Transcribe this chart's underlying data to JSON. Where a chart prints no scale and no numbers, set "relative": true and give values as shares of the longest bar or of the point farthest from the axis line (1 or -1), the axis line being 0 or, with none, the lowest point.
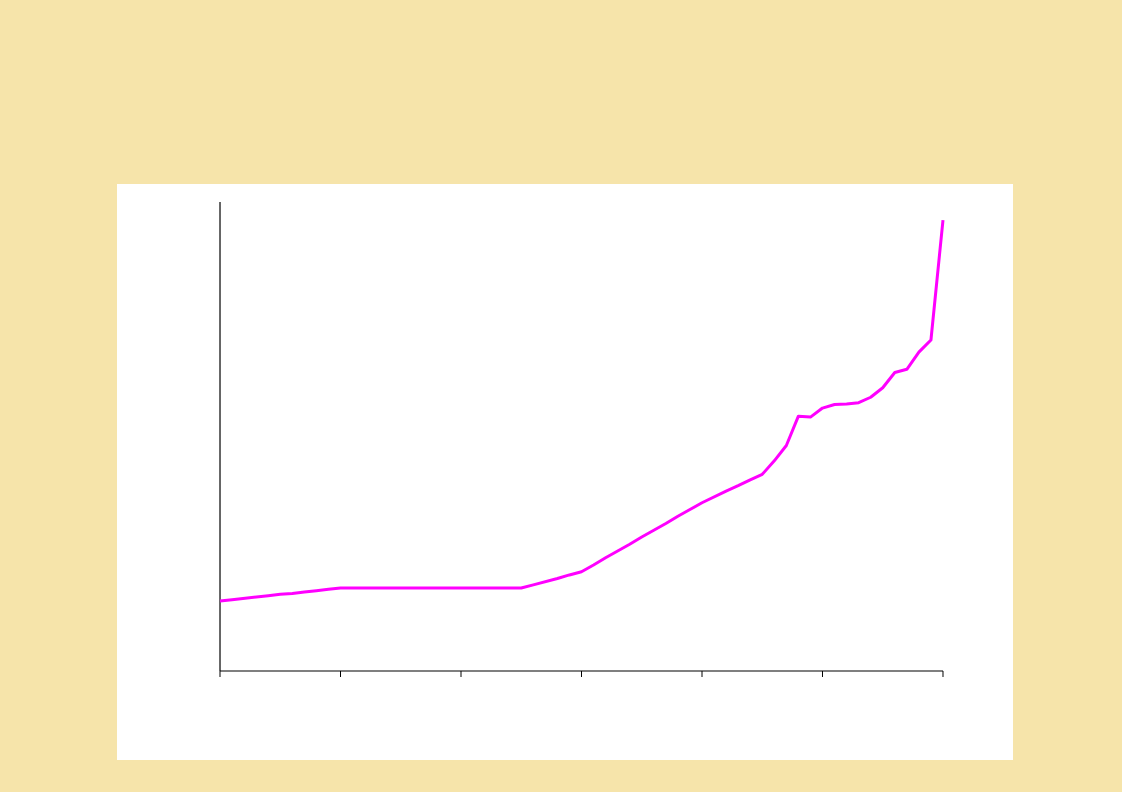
{
  "chart_data": {
    "type": "line",
    "relative": true,
    "categories": [
      null,
      null,
      null,
      null,
      null,
      null,
      null,
      null,
      null,
      null,
      null,
      null,
      null,
      null,
      null,
      null,
      null,
      null,
      null,
      null,
      null,
      null,
      null,
      null,
      null,
      null,
      null,
      null,
      null,
      null,
      null,
      null,
      null,
      null,
      null,
      null,
      null,
      null,
      null,
      null,
      null,
      null,
      null,
      null,
      null,
      null,
      null,
      null,
      null,
      null,
      null,
      null,
      null,
      null,
      null,
      null,
      null,
      null,
      null,
      null,
      null
    ],
    "series": [
      {
        "color": "#ff00ff",
        "values": [
          0.155,
          0.158,
          0.161,
          0.164,
          0.167,
          0.17,
          0.172,
          0.175,
          0.178,
          0.181,
          0.184,
          0.184,
          0.184,
          0.184,
          0.184,
          0.184,
          0.184,
          0.184,
          0.184,
          0.184,
          0.184,
          0.184,
          0.184,
          0.184,
          0.184,
          0.184,
          0.191,
          0.198,
          0.205,
          0.213,
          0.22,
          0.235,
          0.251,
          0.266,
          0.281,
          0.297,
          0.312,
          0.327,
          0.343,
          0.358,
          0.373,
          0.386,
          0.399,
          0.411,
          0.424,
          0.436,
          0.466,
          0.5,
          0.565,
          0.563,
          0.583,
          0.591,
          0.592,
          0.595,
          0.607,
          0.628,
          0.662,
          0.669,
          0.707,
          0.734,
          1
        ]
      }
    ]
  }
}
